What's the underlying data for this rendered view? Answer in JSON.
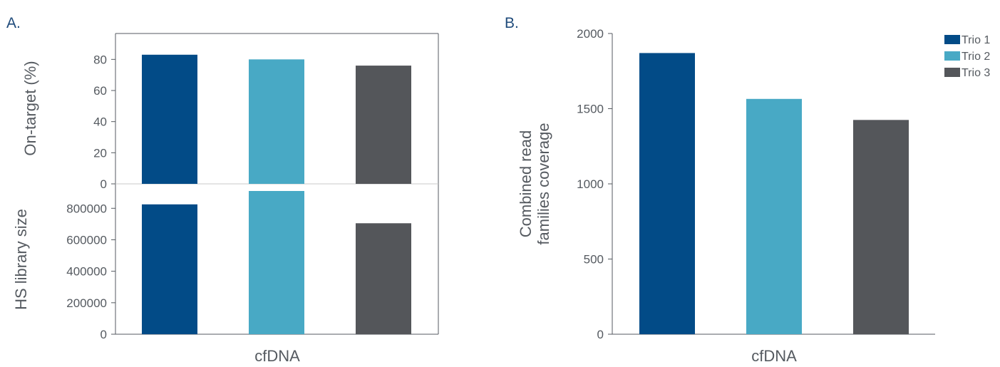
{
  "panels": {
    "a_label": "A.",
    "b_label": "B."
  },
  "colors": {
    "Trio 1": "#024b87",
    "Trio 2": "#48a9c5",
    "Trio 3": "#54565a"
  },
  "chart_data": [
    {
      "type": "bar",
      "panel": "A.",
      "categories": [
        "cfDNA"
      ],
      "xlabel": "cfDNA",
      "ylabel": "On-target (%)",
      "ylim": [
        0,
        90
      ],
      "yticks": [
        "0",
        "20",
        "40",
        "60",
        "80"
      ],
      "series": [
        {
          "name": "Trio 1",
          "values": [
            83
          ]
        },
        {
          "name": "Trio 2",
          "values": [
            80
          ]
        },
        {
          "name": "Trio 3",
          "values": [
            76
          ]
        }
      ]
    },
    {
      "type": "bar",
      "panel": "A.",
      "categories": [
        "cfDNA"
      ],
      "xlabel": "cfDNA",
      "ylabel": "HS library size",
      "ylim": [
        0,
        910000
      ],
      "yticks": [
        "0",
        "200000",
        "400000",
        "600000",
        "800000"
      ],
      "series": [
        {
          "name": "Trio 1",
          "values": [
            825000
          ]
        },
        {
          "name": "Trio 2",
          "values": [
            910000
          ]
        },
        {
          "name": "Trio 3",
          "values": [
            705000
          ]
        }
      ]
    },
    {
      "type": "bar",
      "panel": "B.",
      "categories": [
        "cfDNA"
      ],
      "xlabel": "cfDNA",
      "ylabel": [
        "Combined read",
        "families coverage"
      ],
      "ylim": [
        0,
        2000
      ],
      "yticks": [
        "0",
        "500",
        "1000",
        "1500",
        "2000"
      ],
      "legend": [
        "Trio 1",
        "Trio 2",
        "Trio 3"
      ],
      "legend_position": "top-right",
      "series": [
        {
          "name": "Trio 1",
          "values": [
            1870
          ]
        },
        {
          "name": "Trio 2",
          "values": [
            1565
          ]
        },
        {
          "name": "Trio 3",
          "values": [
            1425
          ]
        }
      ]
    }
  ]
}
